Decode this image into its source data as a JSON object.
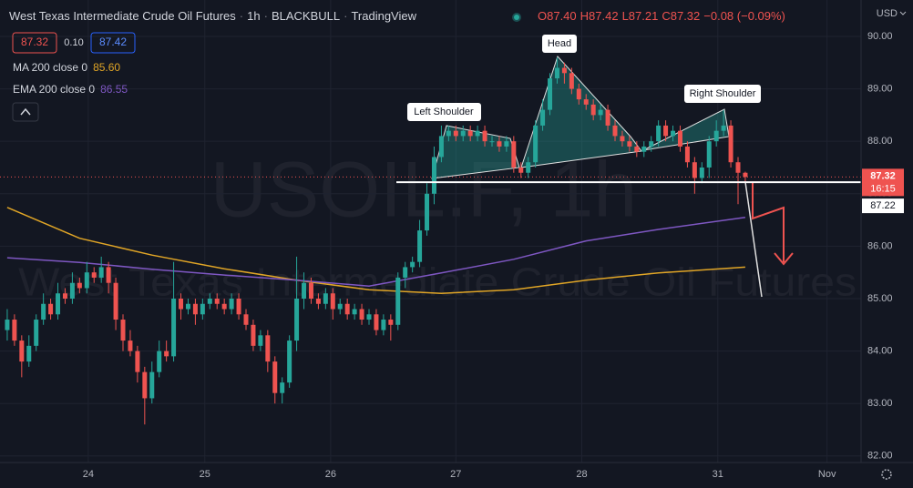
{
  "header": {
    "symbol": "West Texas Intermediate Crude Oil Futures",
    "interval": "1h",
    "broker": "BLACKBULL",
    "platform": "TradingView",
    "ohlc": [
      "O87.40",
      "H87.42",
      "L87.21",
      "C87.32"
    ],
    "change": "−0.08 (−0.09%)",
    "bid": "87.32",
    "spread": "0.10",
    "ask": "87.42",
    "currency": "USD",
    "watermark": "USOIL.F, 1h"
  },
  "chart_data": {
    "type": "candlestick",
    "up_color": "#26a69a",
    "down_color": "#ef5350",
    "x": [
      0,
      1,
      2,
      3,
      4,
      5,
      6,
      7,
      8,
      9,
      10,
      11,
      12,
      13,
      14,
      15,
      16,
      17,
      18,
      19,
      20,
      21,
      22,
      23,
      24,
      25,
      26,
      27,
      28,
      29,
      30,
      31,
      32,
      33,
      34,
      35,
      36,
      37,
      38,
      39,
      40,
      41,
      42,
      43,
      44,
      45,
      46,
      47,
      48,
      49,
      50,
      51,
      52,
      53,
      54,
      55,
      56,
      57,
      58,
      59,
      60,
      61,
      62,
      63,
      64,
      65,
      66,
      67,
      68,
      69,
      70,
      71,
      72,
      73,
      74,
      75,
      76,
      77,
      78,
      79,
      80,
      81,
      82,
      83,
      84,
      85,
      86,
      87,
      88,
      89,
      90,
      91,
      92,
      93,
      94,
      95,
      96,
      97,
      98,
      99,
      100,
      101,
      102
    ],
    "open": [
      84.4,
      84.6,
      84.2,
      83.8,
      84.1,
      84.6,
      84.9,
      84.7,
      85.1,
      85.0,
      85.3,
      85.2,
      85.5,
      85.4,
      85.6,
      85.3,
      84.6,
      84.2,
      84.0,
      83.6,
      83.1,
      83.6,
      84.0,
      83.9,
      85.0,
      84.8,
      84.9,
      84.7,
      84.9,
      85.0,
      84.9,
      84.8,
      85.0,
      84.7,
      84.5,
      84.1,
      84.3,
      83.8,
      83.2,
      83.4,
      84.2,
      85.0,
      85.3,
      85.0,
      84.9,
      85.1,
      84.8,
      84.9,
      84.7,
      84.8,
      84.6,
      84.7,
      84.4,
      84.6,
      84.5,
      85.4,
      85.6,
      85.7,
      86.3,
      87.0,
      87.7,
      88.1,
      88.2,
      88.1,
      88.2,
      88.1,
      88.2,
      88.0,
      88.0,
      87.9,
      88.0,
      87.5,
      87.4,
      87.6,
      88.3,
      88.6,
      89.2,
      89.4,
      89.3,
      89.0,
      88.8,
      88.7,
      88.5,
      88.6,
      88.3,
      88.1,
      88.0,
      87.9,
      87.8,
      87.9,
      88.0,
      88.3,
      88.1,
      88.2,
      87.9,
      87.6,
      87.3,
      87.5,
      88.0,
      88.2,
      88.3,
      87.6,
      87.4
    ],
    "high": [
      84.8,
      84.7,
      84.3,
      84.3,
      84.7,
      85.1,
      85.0,
      85.3,
      85.2,
      85.5,
      85.4,
      85.7,
      85.6,
      85.8,
      85.7,
      85.4,
      84.7,
      84.4,
      84.1,
      83.7,
      83.8,
      84.2,
      84.2,
      85.7,
      85.1,
      85.0,
      85.0,
      85.0,
      85.1,
      85.1,
      85.0,
      85.1,
      85.1,
      84.8,
      84.6,
      84.4,
      84.4,
      83.9,
      83.5,
      84.3,
      85.8,
      85.5,
      85.4,
      85.1,
      85.2,
      85.2,
      85.0,
      85.0,
      84.9,
      84.9,
      84.8,
      84.8,
      84.7,
      84.7,
      85.5,
      85.7,
      85.8,
      86.5,
      87.2,
      87.9,
      88.3,
      88.3,
      88.3,
      88.3,
      88.3,
      88.3,
      88.3,
      88.1,
      88.1,
      88.1,
      88.1,
      87.6,
      87.7,
      88.4,
      88.8,
      89.3,
      89.6,
      89.5,
      89.4,
      89.1,
      88.9,
      88.8,
      88.7,
      88.7,
      88.4,
      88.2,
      88.1,
      88.0,
      88.0,
      88.1,
      88.4,
      88.4,
      88.3,
      88.3,
      88.0,
      87.7,
      87.6,
      88.1,
      88.4,
      88.6,
      88.4,
      87.7,
      87.42
    ],
    "low": [
      84.2,
      84.1,
      83.5,
      83.7,
      84.0,
      84.5,
      84.6,
      84.6,
      84.9,
      84.9,
      85.1,
      85.1,
      85.3,
      85.3,
      85.1,
      84.4,
      84.0,
      83.9,
      83.4,
      82.6,
      83.0,
      83.5,
      83.8,
      83.8,
      84.6,
      84.7,
      84.5,
      84.6,
      84.8,
      84.8,
      84.7,
      84.7,
      84.6,
      84.4,
      84.0,
      84.0,
      83.6,
      83.0,
      83.0,
      83.3,
      84.0,
      84.8,
      84.9,
      84.8,
      84.8,
      84.6,
      84.7,
      84.6,
      84.6,
      84.5,
      84.5,
      84.3,
      84.3,
      84.2,
      84.4,
      85.2,
      85.5,
      85.6,
      86.2,
      86.8,
      87.6,
      88.0,
      88.0,
      88.0,
      88.0,
      88.0,
      87.9,
      87.9,
      87.8,
      87.8,
      87.4,
      87.3,
      87.3,
      87.5,
      88.2,
      88.5,
      89.1,
      89.1,
      88.9,
      88.7,
      88.6,
      88.4,
      88.4,
      88.2,
      88.0,
      87.9,
      87.8,
      87.7,
      87.7,
      87.8,
      87.9,
      88.0,
      88.0,
      87.8,
      87.5,
      87.0,
      87.2,
      87.3,
      87.9,
      88.1,
      87.5,
      86.8,
      87.21
    ],
    "close": [
      84.6,
      84.2,
      83.8,
      84.1,
      84.6,
      84.9,
      84.7,
      85.1,
      85.0,
      85.3,
      85.2,
      85.5,
      85.4,
      85.6,
      85.3,
      84.6,
      84.2,
      84.0,
      83.6,
      83.1,
      83.6,
      84.0,
      83.9,
      85.0,
      84.8,
      84.9,
      84.7,
      84.9,
      85.0,
      84.9,
      84.8,
      85.0,
      84.7,
      84.5,
      84.1,
      84.3,
      83.8,
      83.2,
      83.4,
      84.2,
      85.0,
      85.3,
      85.0,
      84.9,
      85.1,
      84.8,
      84.9,
      84.7,
      84.8,
      84.6,
      84.7,
      84.4,
      84.6,
      84.5,
      85.4,
      85.6,
      85.7,
      86.3,
      87.0,
      87.7,
      88.1,
      88.2,
      88.1,
      88.2,
      88.1,
      88.2,
      88.0,
      88.0,
      87.9,
      88.0,
      87.5,
      87.4,
      87.6,
      88.3,
      88.6,
      89.2,
      89.4,
      89.3,
      89.0,
      88.8,
      88.7,
      88.5,
      88.6,
      88.3,
      88.1,
      88.0,
      87.9,
      87.8,
      87.9,
      88.0,
      88.3,
      88.1,
      88.2,
      87.9,
      87.6,
      87.3,
      87.5,
      88.0,
      88.2,
      88.3,
      87.6,
      87.4,
      87.32
    ],
    "xlim": [
      -1,
      118
    ],
    "ylim": [
      81.875,
      90.694
    ],
    "xticks": [
      {
        "value": 11.2,
        "label": "24"
      },
      {
        "value": 27.3,
        "label": "25"
      },
      {
        "value": 44.7,
        "label": "26"
      },
      {
        "value": 62,
        "label": "27"
      },
      {
        "value": 79.4,
        "label": "28"
      },
      {
        "value": 98.2,
        "label": "31"
      },
      {
        "value": 113.3,
        "label": "Nov"
      }
    ],
    "yticks": [
      {
        "value": 82,
        "label": "82.00"
      },
      {
        "value": 83,
        "label": "83.00"
      },
      {
        "value": 84,
        "label": "84.00"
      },
      {
        "value": 85,
        "label": "85.00"
      },
      {
        "value": 86,
        "label": "86.00"
      },
      {
        "value": 87,
        "label": "87.00"
      },
      {
        "value": 88,
        "label": "88.00"
      },
      {
        "value": 89,
        "label": "89.00"
      },
      {
        "value": 90,
        "label": "90.00"
      }
    ],
    "grid": true,
    "indicators": [
      {
        "name": "MA 200 close 0",
        "color": "#e0a526",
        "last_label": "85.60",
        "x": [
          0,
          10,
          20,
          30,
          40,
          50,
          60,
          70,
          80,
          90,
          102
        ],
        "values": [
          86.74,
          86.15,
          85.83,
          85.57,
          85.35,
          85.17,
          85.1,
          85.17,
          85.35,
          85.49,
          85.6
        ]
      },
      {
        "name": "EMA 200 close 0",
        "color": "#7e57c2",
        "last_label": "86.55",
        "x": [
          0,
          10,
          20,
          30,
          40,
          50,
          60,
          70,
          80,
          90,
          102
        ],
        "values": [
          85.78,
          85.69,
          85.56,
          85.45,
          85.35,
          85.24,
          85.49,
          85.75,
          86.1,
          86.32,
          86.55
        ]
      }
    ],
    "last_price": {
      "value": 87.32,
      "label": "87.32",
      "countdown": "16:15"
    },
    "neckline": {
      "value": 87.22,
      "label": "87.22"
    },
    "annotations": [
      "Left Shoulder",
      "Head",
      "Right Shoulder"
    ]
  }
}
